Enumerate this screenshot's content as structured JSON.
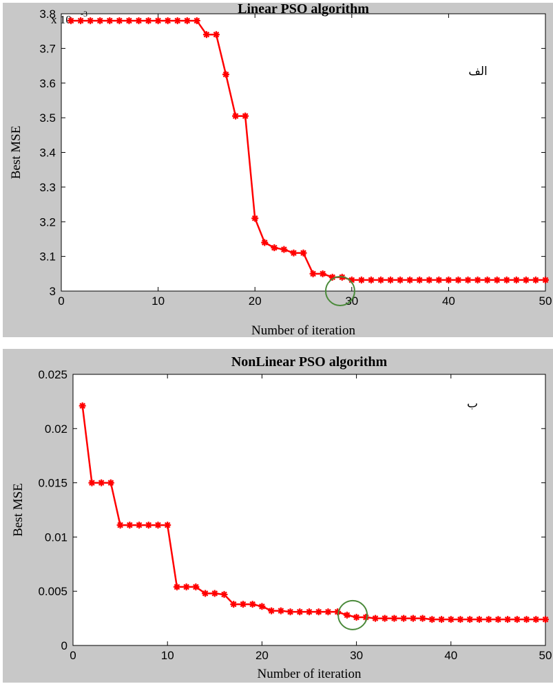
{
  "chart_data": [
    {
      "type": "line",
      "title": "Linear PSO algorithm",
      "xlabel": "Number of iteration",
      "ylabel": "Best MSE",
      "exponent_label": "x 10",
      "exponent_power": "-3",
      "panel_label": "الف",
      "xlim": [
        0,
        50
      ],
      "ylim": [
        3.0,
        3.8
      ],
      "xticks": [
        "0",
        "10",
        "20",
        "30",
        "40",
        "50"
      ],
      "yticks": [
        "3",
        "3.1",
        "3.2",
        "3.3",
        "3.4",
        "3.5",
        "3.6",
        "3.7",
        "3.8"
      ],
      "xtick_values": [
        0,
        10,
        20,
        30,
        40,
        50
      ],
      "ytick_values": [
        3.0,
        3.1,
        3.2,
        3.3,
        3.4,
        3.5,
        3.6,
        3.7,
        3.8
      ],
      "grid": false,
      "line_color": "#ff0000",
      "marker": "star",
      "highlight": {
        "x": 28.8,
        "y": 3.0,
        "color": "#4a8a3a"
      },
      "series": [
        {
          "x": [
            1,
            2,
            3,
            4,
            5,
            6,
            7,
            8,
            9,
            10,
            11,
            12,
            13,
            14,
            15,
            16,
            17,
            18,
            19,
            20,
            21,
            22,
            23,
            24,
            25,
            26,
            27,
            28,
            29,
            30,
            31,
            32,
            33,
            34,
            35,
            36,
            37,
            38,
            39,
            40,
            41,
            42,
            43,
            44,
            45,
            46,
            47,
            48,
            49,
            50
          ],
          "values": [
            3.78,
            3.78,
            3.78,
            3.78,
            3.78,
            3.78,
            3.78,
            3.78,
            3.78,
            3.78,
            3.78,
            3.78,
            3.78,
            3.78,
            3.74,
            3.74,
            3.625,
            3.505,
            3.505,
            3.21,
            3.14,
            3.125,
            3.12,
            3.11,
            3.11,
            3.05,
            3.05,
            3.04,
            3.04,
            3.032,
            3.032,
            3.032,
            3.032,
            3.032,
            3.032,
            3.032,
            3.032,
            3.032,
            3.032,
            3.032,
            3.032,
            3.032,
            3.032,
            3.032,
            3.032,
            3.032,
            3.032,
            3.032,
            3.032,
            3.032
          ]
        }
      ]
    },
    {
      "type": "line",
      "title": "NonLinear PSO algorithm",
      "xlabel": "Number of iteration",
      "ylabel": "Best MSE",
      "panel_label": "ب",
      "xlim": [
        0,
        50
      ],
      "ylim": [
        0,
        0.025
      ],
      "xticks": [
        "0",
        "10",
        "20",
        "30",
        "40",
        "50"
      ],
      "yticks": [
        "0",
        "0.005",
        "0.01",
        "0.015",
        "0.02",
        "0.025"
      ],
      "xtick_values": [
        0,
        10,
        20,
        30,
        40,
        50
      ],
      "ytick_values": [
        0,
        0.005,
        0.01,
        0.015,
        0.02,
        0.025
      ],
      "grid": false,
      "line_color": "#ff0000",
      "marker": "star",
      "highlight": {
        "x": 29.6,
        "y": 0.0028,
        "color": "#4a8a3a"
      },
      "series": [
        {
          "x": [
            1,
            2,
            3,
            4,
            5,
            6,
            7,
            8,
            9,
            10,
            11,
            12,
            13,
            14,
            15,
            16,
            17,
            18,
            19,
            20,
            21,
            22,
            23,
            24,
            25,
            26,
            27,
            28,
            29,
            30,
            31,
            32,
            33,
            34,
            35,
            36,
            37,
            38,
            39,
            40,
            41,
            42,
            43,
            44,
            45,
            46,
            47,
            48,
            49,
            50
          ],
          "values": [
            0.0221,
            0.015,
            0.015,
            0.015,
            0.0111,
            0.0111,
            0.0111,
            0.0111,
            0.0111,
            0.0111,
            0.0054,
            0.0054,
            0.0054,
            0.0048,
            0.0048,
            0.0047,
            0.0038,
            0.0038,
            0.0038,
            0.0036,
            0.0032,
            0.0032,
            0.0031,
            0.0031,
            0.0031,
            0.0031,
            0.0031,
            0.0031,
            0.0028,
            0.0026,
            0.0026,
            0.0025,
            0.0025,
            0.0025,
            0.0025,
            0.0025,
            0.0025,
            0.0024,
            0.0024,
            0.0024,
            0.0024,
            0.0024,
            0.0024,
            0.0024,
            0.0024,
            0.0024,
            0.0024,
            0.0024,
            0.0024,
            0.0024
          ]
        }
      ]
    }
  ]
}
